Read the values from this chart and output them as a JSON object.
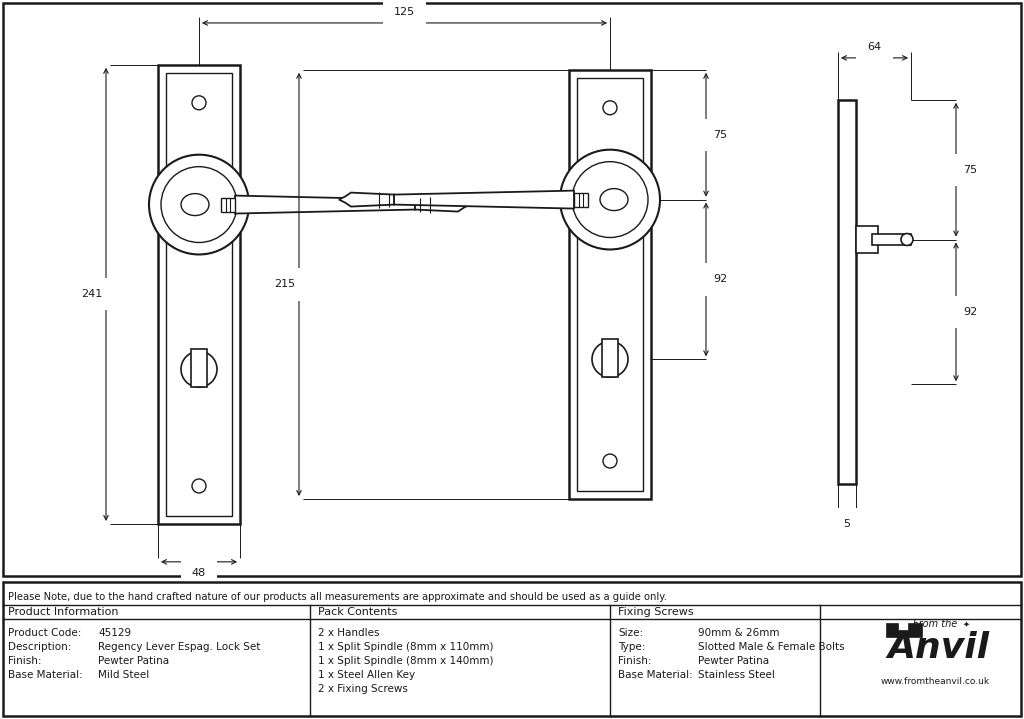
{
  "bg_color": "#ffffff",
  "line_color": "#1a1a1a",
  "note": "Please Note, due to the hand crafted nature of our products all measurements are approximate and should be used as a guide only.",
  "product_info_keys": [
    "Product Code:",
    "Description:",
    "Finish:",
    "Base Material:"
  ],
  "product_info_vals": [
    "45129",
    "Regency Lever Espag. Lock Set",
    "Pewter Patina",
    "Mild Steel"
  ],
  "pack_contents": [
    "2 x Handles",
    "1 x Split Spindle (8mm x 110mm)",
    "1 x Split Spindle (8mm x 140mm)",
    "1 x Steel Allen Key",
    "2 x Fixing Screws"
  ],
  "fixing_keys": [
    "Size:",
    "Type:",
    "Finish:",
    "Base Material:"
  ],
  "fixing_vals": [
    "90mm & 26mm",
    "Slotted Male & Female Bolts",
    "Pewter Patina",
    "Stainless Steel"
  ],
  "dim_125": "125",
  "dim_241": "241",
  "dim_48": "48",
  "dim_215": "215",
  "dim_64": "64",
  "dim_75": "75",
  "dim_92": "92",
  "dim_5": "5"
}
